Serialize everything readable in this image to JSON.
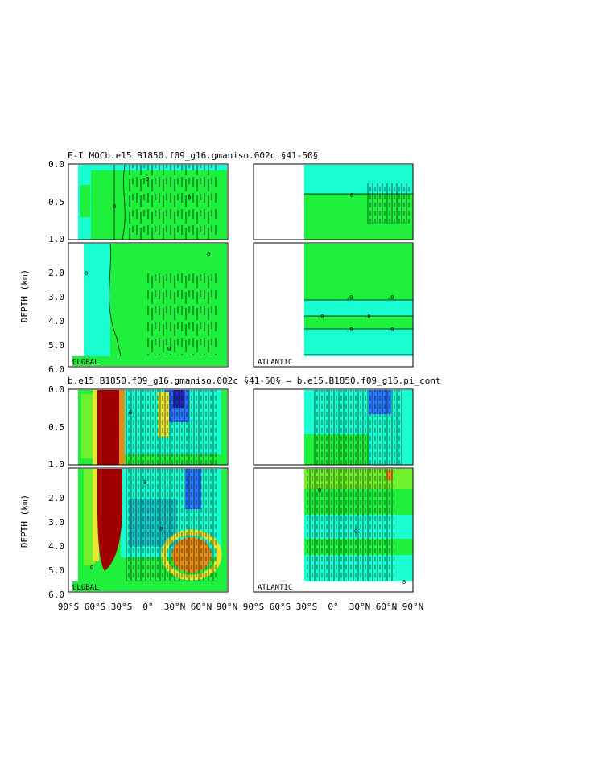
{
  "titles": {
    "top": "E-I MOCb.e15.B1850.f09_g16.gmaniso.002c  §41-50§",
    "bottom": "b.e15.B1850.f09_g16.gmaniso.002c  §41-50§  –  b.e15.B1850.f09_g16.pi_cont"
  },
  "colors": {
    "cyan": "#19ffd2",
    "green": "#1ef03c",
    "light_green": "#6ef02a",
    "yellow": "#e6e632",
    "orange": "#e68c14",
    "red": "#c80000",
    "dark_red": "#a00000",
    "blue": "#2878ff",
    "dark_blue": "#1e28b4",
    "teal": "#14c8c8"
  },
  "chart_data": [
    {
      "type": "heatmap",
      "name": "top-global",
      "basin_label": "GLOBAL",
      "ylabel": "DEPTH  (km)",
      "x_ticks": [
        "90°S",
        "60°S",
        "30°S",
        "0°",
        "30°N",
        "60°N",
        "90°N"
      ],
      "y_ticks_upper": [
        "0.0",
        "0.5",
        "1.0"
      ],
      "y_ticks_lower": [
        "2.0",
        "3.0",
        "4.0",
        "5.0",
        "6.0"
      ],
      "xlim": [
        -90,
        90
      ],
      "ylim_upper": [
        0,
        1
      ],
      "ylim_lower": [
        1,
        6
      ],
      "contour_labels": [
        "0"
      ]
    },
    {
      "type": "heatmap",
      "name": "top-atlantic",
      "basin_label": "ATLANTIC",
      "xlim": [
        -90,
        90
      ],
      "ylim_upper": [
        0,
        1
      ],
      "ylim_lower": [
        1,
        6
      ],
      "contour_labels": [
        ".0",
        ".0",
        ".0",
        ".0",
        ".0",
        ".0",
        "0"
      ]
    },
    {
      "type": "heatmap",
      "name": "bottom-global",
      "basin_label": "GLOBAL",
      "ylabel": "DEPTH  (km)",
      "x_ticks": [
        "90°S",
        "60°S",
        "30°S",
        "0°",
        "30°N",
        "60°N",
        "90°N"
      ],
      "y_ticks_upper": [
        "0.0",
        "0.5",
        "1.0"
      ],
      "y_ticks_lower": [
        "2.0",
        "3.0",
        "4.0",
        "5.0",
        "6.0"
      ],
      "xlim": [
        -90,
        90
      ],
      "ylim_upper": [
        0,
        1
      ],
      "ylim_lower": [
        1,
        6
      ],
      "contour_labels": [
        "0"
      ]
    },
    {
      "type": "heatmap",
      "name": "bottom-atlantic",
      "basin_label": "ATLANTIC",
      "x_ticks": [
        "90°S",
        "60°S",
        "30°S",
        "0°",
        "30°N",
        "60°N",
        "90°N"
      ],
      "xlim": [
        -90,
        90
      ],
      "ylim_upper": [
        0,
        1
      ],
      "ylim_lower": [
        1,
        6
      ],
      "contour_labels": [
        "0"
      ]
    }
  ]
}
